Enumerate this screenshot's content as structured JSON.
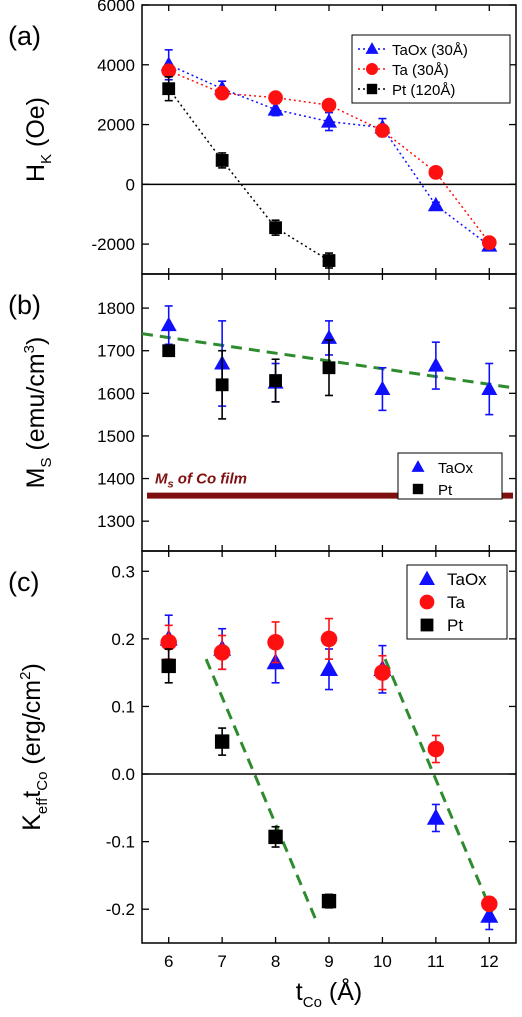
{
  "chart_data": [
    {
      "panel": "(a)",
      "type": "line",
      "ylabel_main": "H",
      "ylabel_sub": "K",
      "ylabel_unit": " (Oe)",
      "ylim": [
        -3000,
        6000
      ],
      "yticks": [
        -2000,
        0,
        2000,
        4000,
        6000
      ],
      "xlim": [
        5.5,
        12.5
      ],
      "zero_line": true,
      "legend_position": "top-right",
      "series": [
        {
          "name": "TaOx (30Å)",
          "marker": "triangle",
          "color": "#1010ff",
          "line": "dotted",
          "x": [
            6,
            7,
            8,
            9,
            10,
            11,
            12
          ],
          "y": [
            4000,
            3200,
            2500,
            2100,
            1900,
            -700,
            -2050
          ],
          "err": [
            500,
            250,
            200,
            300,
            300,
            100,
            100
          ]
        },
        {
          "name": "Ta (30Å)",
          "marker": "circle",
          "color": "#ff1010",
          "line": "dotted",
          "x": [
            6,
            7,
            8,
            9,
            10,
            11,
            12
          ],
          "y": [
            3800,
            3050,
            2900,
            2650,
            1800,
            400,
            -1950
          ],
          "err": [
            0,
            0,
            0,
            0,
            0,
            0,
            0
          ]
        },
        {
          "name": "Pt (120Å)",
          "marker": "square",
          "color": "#000000",
          "line": "dotted",
          "x": [
            6,
            7,
            8,
            9
          ],
          "y": [
            3200,
            800,
            -1450,
            -2550
          ],
          "err": [
            400,
            250,
            250,
            250
          ]
        }
      ]
    },
    {
      "panel": "(b)",
      "type": "scatter",
      "ylabel_main": "M",
      "ylabel_sub": "S",
      "ylabel_unit": " (emu/cm",
      "ylabel_sup": "3",
      "ylabel_close": ")",
      "ylim": [
        1230,
        1880
      ],
      "yticks": [
        1300,
        1400,
        1500,
        1600,
        1700,
        1800
      ],
      "xlim": [
        5.5,
        12.5
      ],
      "legend_position": "center-right",
      "series": [
        {
          "name": "TaOx",
          "marker": "triangle",
          "color": "#1010ff",
          "x": [
            6,
            7,
            8,
            9,
            10,
            11,
            12
          ],
          "y": [
            1760,
            1670,
            1625,
            1730,
            1610,
            1665,
            1610
          ],
          "err": [
            45,
            100,
            45,
            40,
            50,
            55,
            60
          ]
        },
        {
          "name": "Pt",
          "marker": "square",
          "color": "#000000",
          "x": [
            6,
            7,
            8,
            9
          ],
          "y": [
            1700,
            1620,
            1630,
            1660
          ],
          "err": [
            0,
            80,
            50,
            65
          ]
        }
      ],
      "fit_line": {
        "color": "#2e8b2e",
        "x": [
          5.5,
          12.5
        ],
        "y": [
          1740,
          1612
        ]
      },
      "reference_line": {
        "value": 1360,
        "color": "#7f1010",
        "label_main": "M",
        "label_sub": "s",
        "label_rest": " of Co film"
      }
    },
    {
      "panel": "(c)",
      "type": "scatter",
      "ylabel_main": "K",
      "ylabel_sub1": "eff",
      "ylabel_mid": "t",
      "ylabel_sub2": "Co",
      "ylabel_unit": " (erg/cm",
      "ylabel_sup": "2",
      "ylabel_close": ")",
      "ylim": [
        -0.25,
        0.33
      ],
      "yticks": [
        -0.2,
        -0.1,
        0.0,
        0.1,
        0.2,
        0.3
      ],
      "ytick_labels": [
        "-0.2",
        "-0.1",
        "0.0",
        "0.1",
        "0.2",
        "0.3"
      ],
      "xlim": [
        5.5,
        12.5
      ],
      "xticks": [
        6,
        7,
        8,
        9,
        10,
        11,
        12
      ],
      "xlabel_main": "t",
      "xlabel_sub": "Co",
      "xlabel_unit": " (Å)",
      "zero_line": true,
      "legend_position": "top-right",
      "series": [
        {
          "name": "TaOx",
          "marker": "triangle",
          "color": "#1010ff",
          "x": [
            6,
            7,
            8,
            9,
            10,
            11,
            12
          ],
          "y": [
            0.2,
            0.185,
            0.165,
            0.155,
            0.155,
            -0.065,
            -0.21
          ],
          "err": [
            0.035,
            0.03,
            0.03,
            0.03,
            0.035,
            0.02,
            0.02
          ]
        },
        {
          "name": "Ta",
          "marker": "circle",
          "color": "#ff1010",
          "x": [
            6,
            7,
            8,
            9,
            10,
            11,
            12
          ],
          "y": [
            0.195,
            0.18,
            0.195,
            0.2,
            0.15,
            0.037,
            -0.192
          ],
          "err": [
            0.025,
            0.025,
            0.03,
            0.03,
            0.025,
            0.02,
            0.0
          ]
        },
        {
          "name": "Pt",
          "marker": "square",
          "color": "#000000",
          "x": [
            6,
            7,
            8,
            9
          ],
          "y": [
            0.16,
            0.048,
            -0.093,
            -0.188
          ],
          "err": [
            0.025,
            0.02,
            0.015,
            0.01
          ]
        }
      ],
      "fit_lines": [
        {
          "color": "#2e8b2e",
          "x": [
            6.7,
            8.75
          ],
          "y": [
            0.17,
            -0.215
          ]
        },
        {
          "color": "#2e8b2e",
          "x": [
            10.05,
            12.05
          ],
          "y": [
            0.17,
            -0.205
          ]
        }
      ]
    }
  ]
}
